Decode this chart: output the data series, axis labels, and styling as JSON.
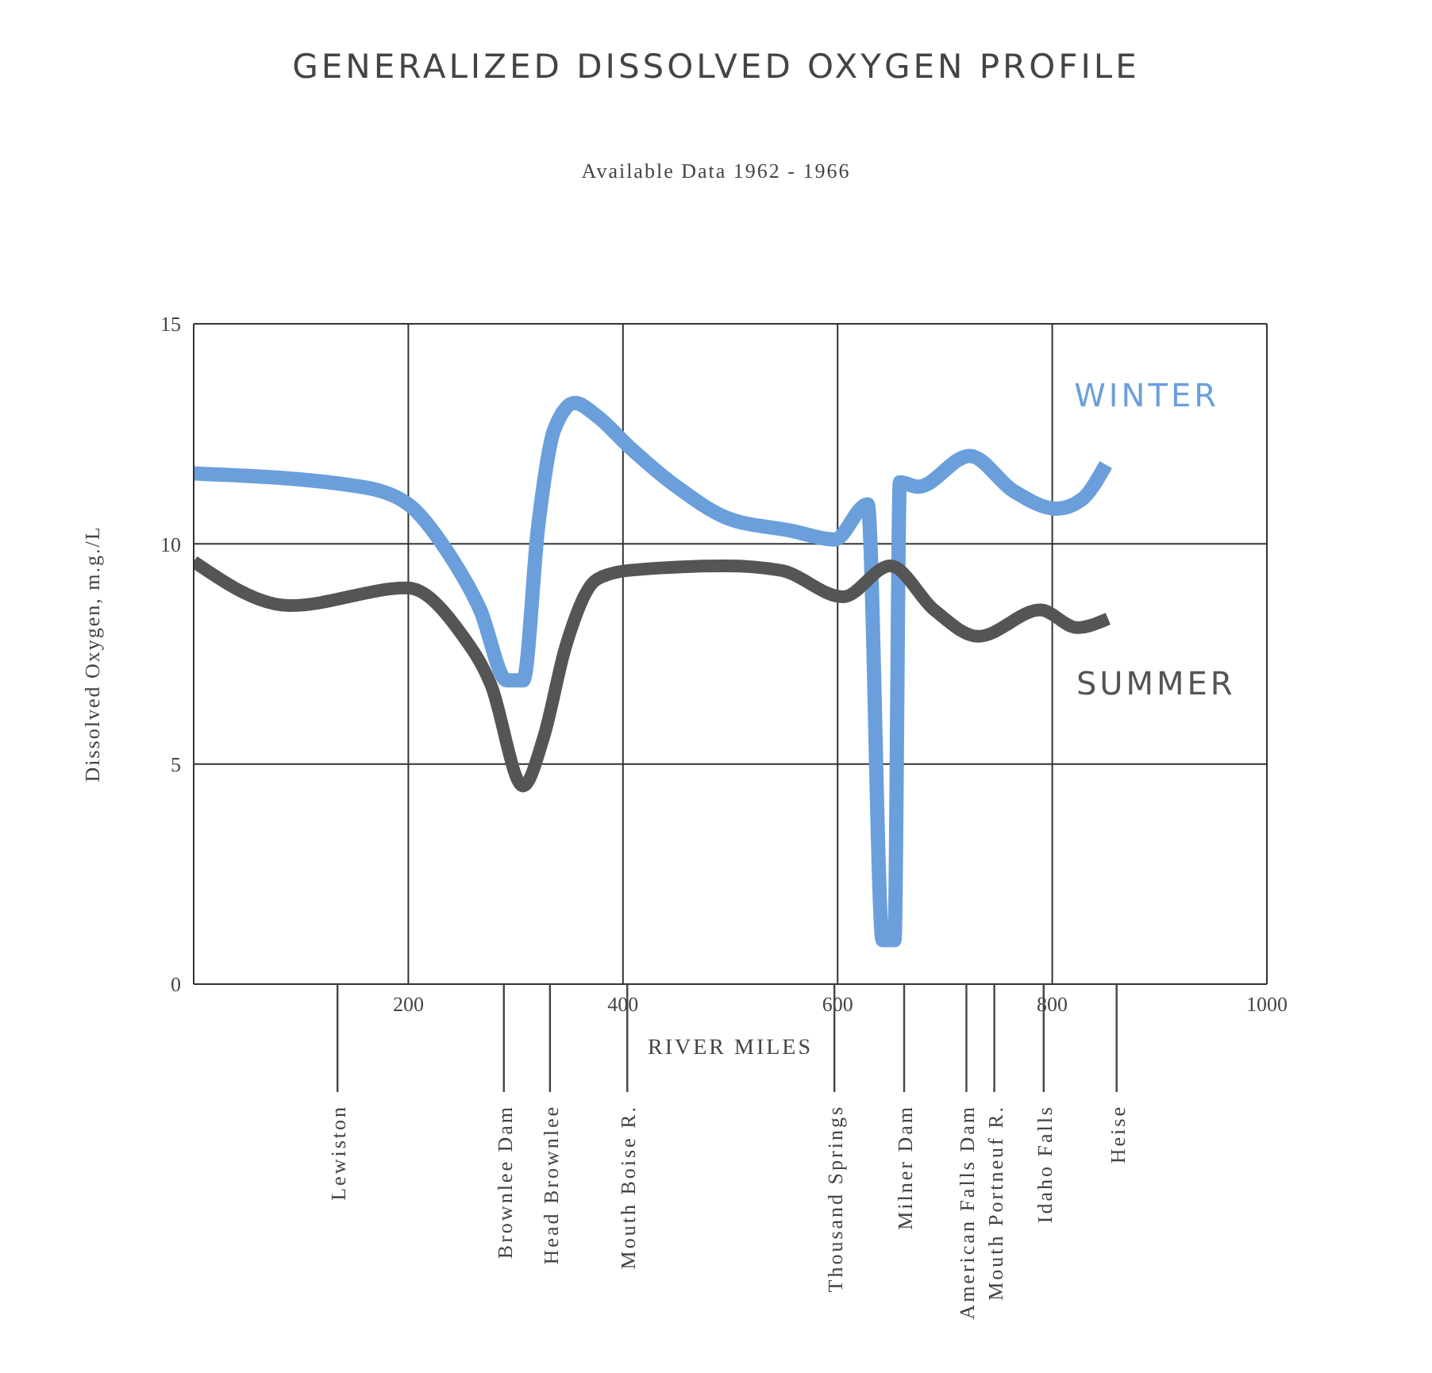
{
  "chart_data": {
    "type": "line",
    "title": "GENERALIZED DISSOLVED OXYGEN PROFILE",
    "subtitle": "Available Data 1962 - 1966",
    "xlabel": "RIVER MILES",
    "ylabel": "Dissolved Oxygen, m.g./L",
    "series": [
      {
        "name": "WINTER",
        "color": "#6a9fdc",
        "x": [
          0,
          155,
          200,
          237,
          267,
          292,
          307,
          321,
          336,
          355,
          376,
          406,
          450,
          496,
          557,
          597,
          628,
          642,
          653,
          658,
          675,
          723,
          764,
          804,
          827,
          850
        ],
        "values": [
          11.6,
          11.3,
          10.9,
          9.8,
          8.5,
          6.9,
          6.9,
          10.4,
          12.6,
          13.2,
          12.9,
          12.2,
          11.3,
          10.6,
          10.3,
          10.1,
          10.9,
          1.0,
          1.0,
          11.4,
          11.3,
          12.0,
          11.2,
          10.8,
          11.0,
          11.8
        ]
      },
      {
        "name": "SUMMER",
        "color": "#555555",
        "x": [
          0,
          90,
          199,
          248,
          277,
          307,
          326,
          347,
          376,
          406,
          496,
          547,
          605,
          649,
          690,
          731,
          789,
          823,
          852
        ],
        "values": [
          9.6,
          8.6,
          9.0,
          8.0,
          6.8,
          4.5,
          5.6,
          7.7,
          9.2,
          9.4,
          9.5,
          9.4,
          8.8,
          9.5,
          8.5,
          7.9,
          8.5,
          8.1,
          8.3
        ]
      }
    ],
    "xlim": [
      0,
      1000
    ],
    "xticks": [
      {
        "value": 0,
        "label": null
      },
      200,
      400,
      600,
      800,
      1000
    ],
    "ylim": [
      0,
      15
    ],
    "yticks": [
      0,
      5,
      10,
      15
    ],
    "grid": true,
    "legend": false,
    "line_style": "solid",
    "marker": "none",
    "ref_lines": [
      {
        "axis": "x",
        "value": 134,
        "label": "Lewiston"
      },
      {
        "axis": "x",
        "value": 289,
        "label": "Brownlee Dam"
      },
      {
        "axis": "x",
        "value": 332,
        "label": "Head Brownlee"
      },
      {
        "axis": "x",
        "value": 404,
        "label": "Mouth Boise R."
      },
      {
        "axis": "x",
        "value": 597,
        "label": "Thousand Springs"
      },
      {
        "axis": "x",
        "value": 662,
        "label": "Milner Dam"
      },
      {
        "axis": "x",
        "value": 720,
        "label": "American Falls Dam"
      },
      {
        "axis": "x",
        "value": 746,
        "label": "Mouth Portneuf R."
      },
      {
        "axis": "x",
        "value": 792,
        "label": "Idaho Falls"
      },
      {
        "axis": "x",
        "value": 860,
        "label": "Heise"
      }
    ]
  }
}
